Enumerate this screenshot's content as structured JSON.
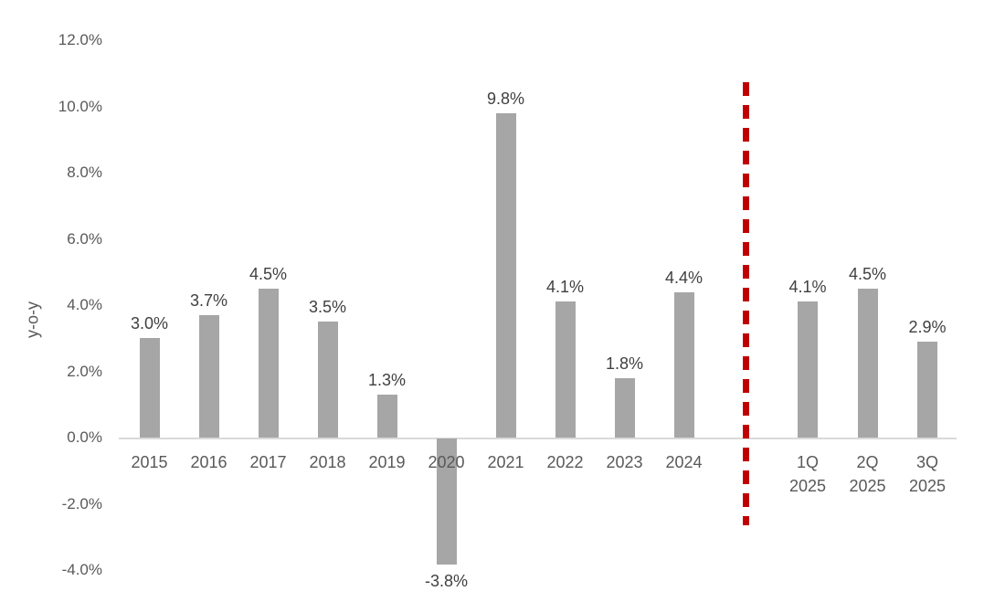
{
  "chart_data": {
    "type": "bar",
    "title": "",
    "xlabel": "",
    "ylabel": "y-o-y",
    "ylim": [
      -4.0,
      12.0
    ],
    "ytick_step": 2.0,
    "yticks": [
      "12.0%",
      "10.0%",
      "8.0%",
      "6.0%",
      "4.0%",
      "2.0%",
      "0.0%",
      "-2.0%",
      "-4.0%"
    ],
    "categories": [
      "2015",
      "2016",
      "2017",
      "2018",
      "2019",
      "2020",
      "2021",
      "2022",
      "2023",
      "2024",
      "1Q\n2025",
      "2Q\n2025",
      "3Q\n2025"
    ],
    "values": [
      3.0,
      3.7,
      4.5,
      3.5,
      1.3,
      -3.8,
      9.8,
      4.1,
      1.8,
      4.4,
      4.1,
      4.5,
      2.9
    ],
    "data_labels": [
      "3.0%",
      "3.7%",
      "4.5%",
      "3.5%",
      "1.3%",
      "-3.8%",
      "9.8%",
      "4.1%",
      "1.8%",
      "4.4%",
      "4.1%",
      "4.5%",
      "2.9%"
    ],
    "separator_after_index": 9,
    "grid": false,
    "legend": false,
    "colors": {
      "bar": "#a6a6a6",
      "axis_line": "#d9d9d9",
      "tick_text": "#595959",
      "label_text": "#404040",
      "separator": "#c00000"
    }
  }
}
